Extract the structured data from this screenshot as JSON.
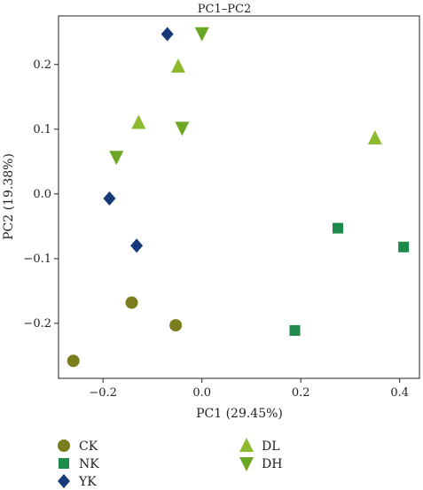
{
  "chart_data": {
    "type": "scatter",
    "title": "PC1–PC2",
    "xlabel": "PC1 (29.45%)",
    "ylabel": "PC2 (19.38%)",
    "xlim": [
      -0.29,
      0.44
    ],
    "ylim": [
      -0.285,
      0.275
    ],
    "xticks": [
      -0.2,
      0.0,
      0.2,
      0.4
    ],
    "xtick_labels": [
      "−0.2",
      "0.0",
      "0.2",
      "0.4"
    ],
    "yticks": [
      -0.2,
      -0.1,
      0.0,
      0.1,
      0.2
    ],
    "ytick_labels": [
      "−0.2",
      "−0.1",
      "0.0",
      "0.1",
      "0.2"
    ],
    "grid": false,
    "legend_position": "bottom",
    "series": [
      {
        "name": "CK",
        "marker": "circle",
        "color": "#7a7d1e",
        "points": [
          [
            -0.26,
            -0.258
          ],
          [
            -0.142,
            -0.168
          ],
          [
            -0.053,
            -0.203
          ]
        ]
      },
      {
        "name": "NK",
        "marker": "square",
        "color": "#1e8a4c",
        "points": [
          [
            0.188,
            -0.211
          ],
          [
            0.275,
            -0.053
          ],
          [
            0.408,
            -0.082
          ]
        ]
      },
      {
        "name": "YK",
        "marker": "diamond",
        "color": "#15397a",
        "points": [
          [
            -0.07,
            0.247
          ],
          [
            -0.187,
            -0.007
          ],
          [
            -0.132,
            -0.08
          ]
        ]
      },
      {
        "name": "DL",
        "marker": "triangle-up",
        "color": "#8cba2c",
        "points": [
          [
            -0.048,
            0.197
          ],
          [
            -0.128,
            0.11
          ],
          [
            0.35,
            0.086
          ]
        ]
      },
      {
        "name": "DH",
        "marker": "triangle-down",
        "color": "#6aa824",
        "points": [
          [
            0.0,
            0.248
          ],
          [
            -0.04,
            0.102
          ],
          [
            -0.173,
            0.057
          ]
        ]
      }
    ]
  }
}
